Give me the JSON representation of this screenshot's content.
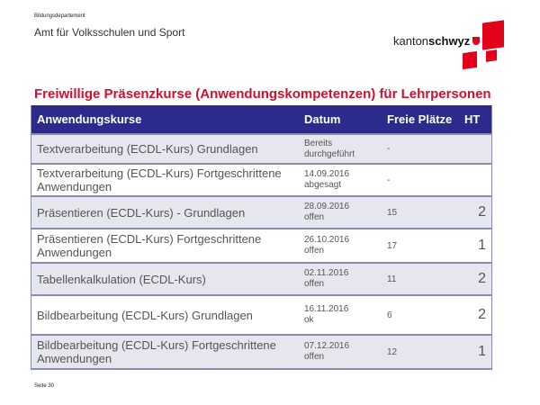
{
  "header": {
    "department": "Bildungsdepartement",
    "office": "Amt für Volksschulen und Sport",
    "logo": {
      "prefix": "kanton",
      "name": "schwyz"
    }
  },
  "title": "Freiwillige Präsenzkurse (Anwendungskompetenzen) für Lehrpersonen",
  "table": {
    "columns": [
      "Anwendungskurse",
      "Datum",
      "Freie Plätze",
      "HT"
    ],
    "rows": [
      {
        "course": "Textverarbeitung (ECDL-Kurs) Grundlagen",
        "date": "Bereits",
        "status": "durchgeführt",
        "free": "-",
        "ht": ""
      },
      {
        "course": "Textverarbeitung (ECDL-Kurs) Fortgeschrittene Anwendungen",
        "date": "14.09.2016",
        "status": "abgesagt",
        "free": "-",
        "ht": ""
      },
      {
        "course": "Präsentieren (ECDL-Kurs) - Grundlagen",
        "date": "28.09.2016",
        "status": "offen",
        "free": "15",
        "ht": "2"
      },
      {
        "course": "Präsentieren  (ECDL-Kurs) Fortgeschrittene Anwendungen",
        "date": "26.10.2016",
        "status": "offen",
        "free": "17",
        "ht": "1"
      },
      {
        "course": "Tabellenkalkulation (ECDL-Kurs)",
        "date": "02.11.2016",
        "status": "offen",
        "free": "11",
        "ht": "2"
      },
      {
        "course": "Bildbearbeitung (ECDL-Kurs) Grundlagen",
        "date": "16.11.2016",
        "status": "ok",
        "free": "6",
        "ht": "2"
      },
      {
        "course": "Bildbearbeitung (ECDL-Kurs) Fortgeschrittene Anwendungen",
        "date": "07.12.2016",
        "status": "offen",
        "free": "12",
        "ht": "1"
      }
    ]
  },
  "footer": {
    "page": "Seite 30"
  },
  "colors": {
    "accent": "#d0102e",
    "header": "#2b2b8e",
    "alt_row": "#e6e6ee"
  }
}
